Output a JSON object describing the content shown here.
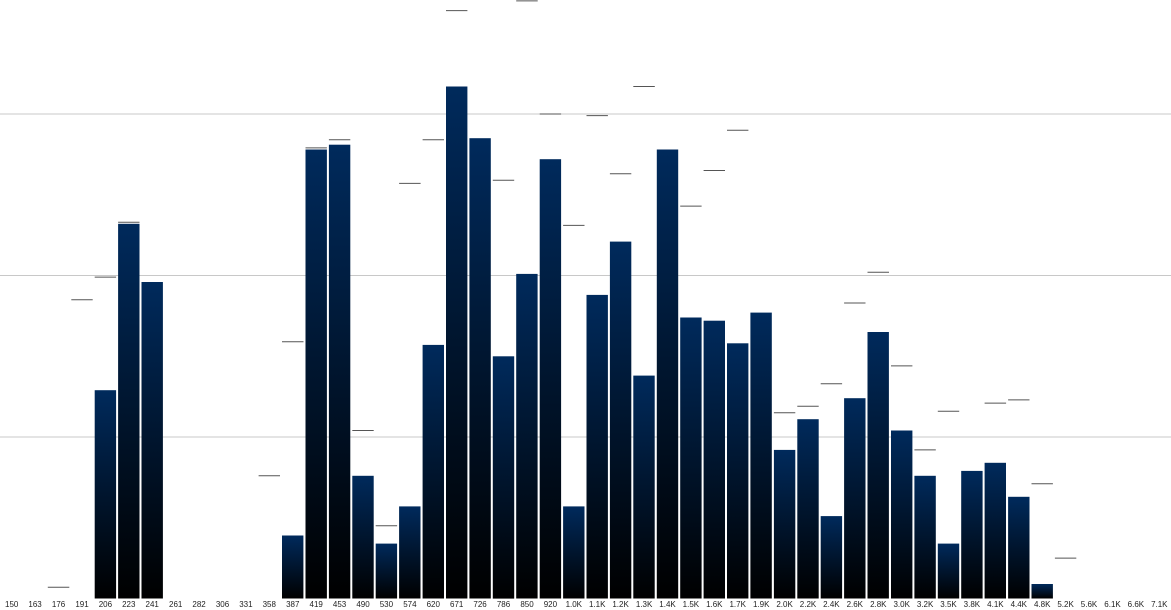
{
  "chart_data": {
    "type": "bar",
    "title": "",
    "xlabel": "",
    "ylabel": "",
    "grid": true,
    "legend": "none",
    "colors": {
      "bar_top": "#002a5c",
      "bar_bottom": "#000000",
      "grid": "#c8c8c8",
      "marker": "#555555"
    },
    "categories": [
      "150",
      "163",
      "176",
      "191",
      "206",
      "223",
      "241",
      "261",
      "282",
      "306",
      "331",
      "358",
      "387",
      "419",
      "453",
      "490",
      "530",
      "574",
      "620",
      "671",
      "726",
      "786",
      "850",
      "920",
      "1.0K",
      "1.1K",
      "1.2K",
      "1.3K",
      "1.4K",
      "1.5K",
      "1.6K",
      "1.7K",
      "1.9K",
      "2.0K",
      "2.2K",
      "2.4K",
      "2.6K",
      "2.8K",
      "3.0K",
      "3.2K",
      "3.5K",
      "3.8K",
      "4.1K",
      "4.4K",
      "4.8K",
      "5.2K",
      "5.6K",
      "6.1K",
      "6.6K",
      "7.1K"
    ],
    "ylim": [
      0,
      3.7
    ],
    "series": [
      {
        "role": "bars",
        "values": [
          0,
          0,
          0,
          0,
          1.29,
          2.32,
          1.96,
          0,
          0,
          0,
          0,
          0,
          0.39,
          2.78,
          2.81,
          0.76,
          0.34,
          0.57,
          1.57,
          3.17,
          2.85,
          1.5,
          2.01,
          2.72,
          0.57,
          1.88,
          2.21,
          1.38,
          2.78,
          1.74,
          1.72,
          1.58,
          1.77,
          0.92,
          1.11,
          0.51,
          1.24,
          1.65,
          1.04,
          0.76,
          0.34,
          0.79,
          0.84,
          0.63,
          0.09,
          0,
          0,
          0,
          0,
          0
        ]
      },
      {
        "role": "reference-markers",
        "values": [
          null,
          null,
          0.07,
          1.85,
          1.99,
          2.33,
          null,
          null,
          null,
          null,
          null,
          0.76,
          1.59,
          2.79,
          2.84,
          1.04,
          0.45,
          2.57,
          2.84,
          3.64,
          null,
          2.59,
          3.7,
          3.0,
          2.31,
          2.99,
          2.63,
          3.17,
          null,
          2.43,
          2.65,
          2.9,
          null,
          1.15,
          1.19,
          1.33,
          1.83,
          2.02,
          1.44,
          0.92,
          1.16,
          null,
          1.21,
          1.23,
          0.71,
          0.25,
          null,
          null,
          null,
          null
        ]
      }
    ]
  }
}
